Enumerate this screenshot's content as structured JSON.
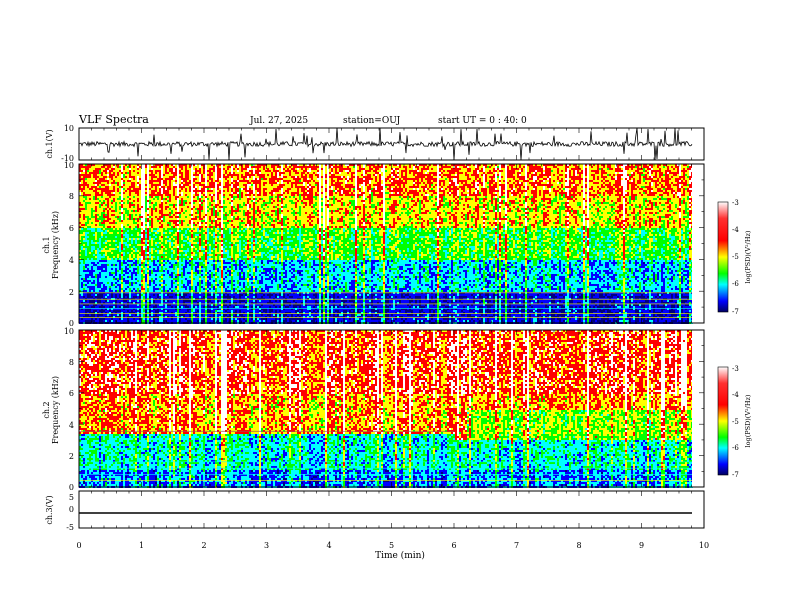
{
  "header": {
    "title": "VLF Spectra",
    "date": "Jul. 27, 2025",
    "station": "station=OUJ",
    "start_ut": "start UT =  0 : 40: 0"
  },
  "chart_data": [
    {
      "type": "line",
      "panel": "ch1-waveform",
      "ylabel": "ch.1(V)",
      "ylim": [
        -10,
        10
      ],
      "yticks": [
        "10",
        "-10"
      ],
      "xlim": [
        0,
        10
      ],
      "baseline_value": 0,
      "color": "#000000"
    },
    {
      "type": "heatmap",
      "panel": "ch1-spectrogram",
      "ylabel": "ch.1\nFrequency (kHz)",
      "ylim": [
        0,
        10
      ],
      "yticks": [
        "0",
        "2",
        "4",
        "6",
        "8",
        "10"
      ],
      "xlim": [
        0,
        10
      ],
      "colorbar": {
        "label": "log(PSD)(V²/Hz)",
        "ticks": [
          "-3",
          "-4",
          "-5",
          "-6",
          "-7"
        ],
        "range": [
          -7,
          -3
        ]
      }
    },
    {
      "type": "heatmap",
      "panel": "ch2-spectrogram",
      "ylabel": "ch.2\nFrequency (kHz)",
      "ylim": [
        0,
        10
      ],
      "yticks": [
        "0",
        "2",
        "4",
        "6",
        "8",
        "10"
      ],
      "xlim": [
        0,
        10
      ],
      "colorbar": {
        "label": "log(PSD)(V²/Hz)",
        "ticks": [
          "-3",
          "-4",
          "-5",
          "-6",
          "-7"
        ],
        "range": [
          -7,
          -3
        ]
      }
    },
    {
      "type": "line",
      "panel": "ch3-waveform",
      "ylabel": "ch.3(V)",
      "ylim": [
        -5,
        5
      ],
      "yticks": [
        "5",
        "0",
        "-5"
      ],
      "xlim": [
        0,
        10
      ],
      "xlabel": "Time (min)",
      "xticks": [
        "0",
        "1",
        "2",
        "3",
        "4",
        "5",
        "6",
        "7",
        "8",
        "9",
        "10"
      ],
      "constant_value": -1.2,
      "color": "#000000"
    }
  ],
  "colormap": [
    "#ffffff",
    "#ff0000",
    "#ffff00",
    "#00ff00",
    "#00ffff",
    "#0000ff",
    "#000080"
  ]
}
